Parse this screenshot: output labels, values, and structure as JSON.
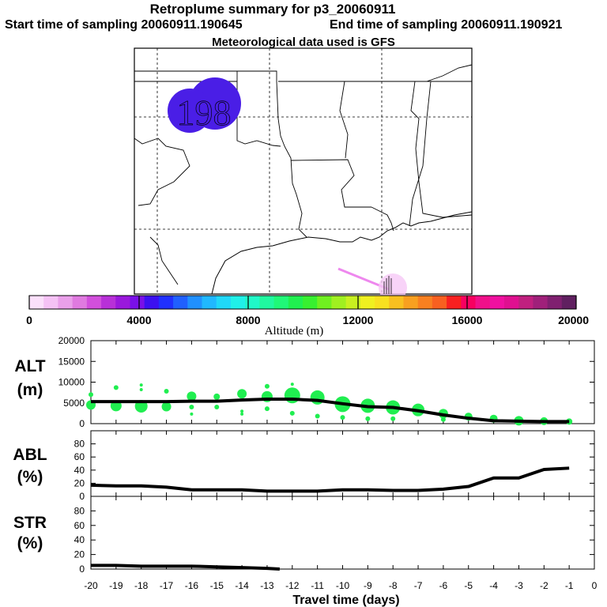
{
  "header": {
    "title": "Retroplume summary for p3_20060911",
    "start_label": "Start time of sampling 20060911.190645",
    "end_label": "End time of sampling 20060911.190921",
    "met_label": "Meteorological data used is GFS"
  },
  "map": {
    "plume_label": "198",
    "plume_color": "#4a1ee6",
    "release_color": "#ee88ee"
  },
  "colorbar": {
    "label": "Altitude (m)",
    "ticks": [
      "0",
      "4000",
      "8000",
      "12000",
      "16000",
      "20000"
    ],
    "colors": [
      "#fbe0fb",
      "#f5c2f5",
      "#eaa0ea",
      "#e07ae0",
      "#d24fdc",
      "#b830d8",
      "#9a18dc",
      "#7a10e8",
      "#3c10f0",
      "#2030ff",
      "#2060ff",
      "#2090ff",
      "#20b8ff",
      "#20d8f8",
      "#20f0e8",
      "#20f8c8",
      "#20f8a0",
      "#20f878",
      "#20f050",
      "#38f030",
      "#70f020",
      "#a0f020",
      "#c8f020",
      "#f0f020",
      "#f8e020",
      "#f8c020",
      "#f8a020",
      "#f88020",
      "#f86020",
      "#f82020",
      "#f80060",
      "#f0108a",
      "#f010a0",
      "#e01090",
      "#c0207f",
      "#a0207a",
      "#802070",
      "#602060"
    ]
  },
  "chart_data": [
    {
      "type": "line",
      "name": "ALT",
      "ylabel": "ALT\n(m)",
      "ylabel_lines": [
        "ALT",
        "(m)"
      ],
      "xlabel": "Travel time (days)",
      "xlim": [
        -20,
        0
      ],
      "ylim": [
        0,
        20000
      ],
      "yticks": [
        0,
        5000,
        10000,
        15000,
        20000
      ],
      "yticklabels": [
        "0",
        "5000",
        "10000",
        "15000",
        "20000"
      ],
      "x": [
        -20,
        -19,
        -18,
        -17,
        -16,
        -15,
        -14,
        -13,
        -12,
        -11,
        -10,
        -9,
        -8,
        -7,
        -6,
        -5,
        -4,
        -3,
        -2,
        -1
      ],
      "values": [
        5300,
        5300,
        5300,
        5300,
        5400,
        5400,
        5700,
        5900,
        5900,
        5600,
        4800,
        4100,
        3900,
        3100,
        2100,
        1300,
        700,
        600,
        500,
        500
      ],
      "scatter_color": "#20ee50",
      "scatter": [
        {
          "x": -20,
          "y": 7000,
          "s": 3
        },
        {
          "x": -20,
          "y": 4500,
          "s": 6
        },
        {
          "x": -19,
          "y": 8700,
          "s": 3
        },
        {
          "x": -19,
          "y": 4300,
          "s": 7
        },
        {
          "x": -18,
          "y": 9300,
          "s": 2
        },
        {
          "x": -18,
          "y": 8200,
          "s": 2
        },
        {
          "x": -18,
          "y": 4200,
          "s": 8
        },
        {
          "x": -17,
          "y": 7800,
          "s": 3
        },
        {
          "x": -17,
          "y": 4100,
          "s": 6
        },
        {
          "x": -16,
          "y": 6600,
          "s": 6
        },
        {
          "x": -16,
          "y": 4000,
          "s": 3
        },
        {
          "x": -16,
          "y": 2300,
          "s": 2
        },
        {
          "x": -15,
          "y": 6500,
          "s": 4
        },
        {
          "x": -15,
          "y": 4000,
          "s": 3
        },
        {
          "x": -14,
          "y": 7200,
          "s": 6
        },
        {
          "x": -14,
          "y": 3000,
          "s": 2
        },
        {
          "x": -14,
          "y": 2300,
          "s": 2
        },
        {
          "x": -13,
          "y": 9000,
          "s": 3
        },
        {
          "x": -13,
          "y": 6500,
          "s": 7
        },
        {
          "x": -13,
          "y": 3600,
          "s": 3
        },
        {
          "x": -12,
          "y": 9500,
          "s": 2
        },
        {
          "x": -12,
          "y": 6800,
          "s": 10
        },
        {
          "x": -12,
          "y": 2500,
          "s": 3
        },
        {
          "x": -11,
          "y": 6300,
          "s": 9
        },
        {
          "x": -11,
          "y": 1800,
          "s": 3
        },
        {
          "x": -10,
          "y": 4700,
          "s": 10
        },
        {
          "x": -10,
          "y": 1500,
          "s": 3
        },
        {
          "x": -9,
          "y": 4300,
          "s": 9
        },
        {
          "x": -9,
          "y": 1200,
          "s": 3
        },
        {
          "x": -8,
          "y": 3900,
          "s": 9
        },
        {
          "x": -8,
          "y": 1200,
          "s": 3
        },
        {
          "x": -7,
          "y": 3300,
          "s": 8
        },
        {
          "x": -6,
          "y": 2400,
          "s": 6
        },
        {
          "x": -6,
          "y": 1000,
          "s": 3
        },
        {
          "x": -5,
          "y": 1700,
          "s": 5
        },
        {
          "x": -4,
          "y": 1200,
          "s": 5
        },
        {
          "x": -3,
          "y": 700,
          "s": 6
        },
        {
          "x": -2,
          "y": 600,
          "s": 5
        },
        {
          "x": -1,
          "y": 500,
          "s": 4
        }
      ]
    },
    {
      "type": "line",
      "name": "ABL",
      "ylabel_lines": [
        "ABL",
        "(%)"
      ],
      "xlim": [
        -20,
        0
      ],
      "ylim": [
        0,
        100
      ],
      "yticks": [
        0,
        20,
        40,
        60,
        80
      ],
      "yticklabels": [
        "0",
        "20",
        "40",
        "60",
        "80"
      ],
      "x": [
        -20,
        -19,
        -18,
        -17,
        -16,
        -15,
        -14,
        -13,
        -12,
        -11,
        -10,
        -9,
        -8,
        -7,
        -6,
        -5,
        -4,
        -3,
        -2,
        -1
      ],
      "values": [
        17,
        16,
        16,
        14,
        10,
        10,
        10,
        8,
        8,
        8,
        10,
        10,
        9,
        9,
        11,
        15,
        28,
        28,
        41,
        43
      ]
    },
    {
      "type": "line",
      "name": "STR",
      "ylabel_lines": [
        "STR",
        "(%)"
      ],
      "xlim": [
        -20,
        0
      ],
      "ylim": [
        0,
        100
      ],
      "yticks": [
        0,
        20,
        40,
        60,
        80
      ],
      "yticklabels": [
        "0",
        "20",
        "40",
        "60",
        "80"
      ],
      "xticks": [
        -20,
        -19,
        -18,
        -17,
        -16,
        -15,
        -14,
        -13,
        -12,
        -11,
        -10,
        -9,
        -8,
        -7,
        -6,
        -5,
        -4,
        -3,
        -2,
        -1,
        0
      ],
      "xticklabels": [
        "-20",
        "-19",
        "-18",
        "-17",
        "-16",
        "-15",
        "-14",
        "-13",
        "-12",
        "-11",
        "-10",
        "-9",
        "-8",
        "-7",
        "-6",
        "-5",
        "-4",
        "-3",
        "-2",
        "-1",
        "0"
      ],
      "x": [
        -20,
        -19,
        -18,
        -17,
        -16,
        -15,
        -14,
        -13,
        -12.5
      ],
      "values": [
        5,
        5,
        4,
        4,
        4,
        3,
        2,
        1,
        0
      ]
    }
  ]
}
